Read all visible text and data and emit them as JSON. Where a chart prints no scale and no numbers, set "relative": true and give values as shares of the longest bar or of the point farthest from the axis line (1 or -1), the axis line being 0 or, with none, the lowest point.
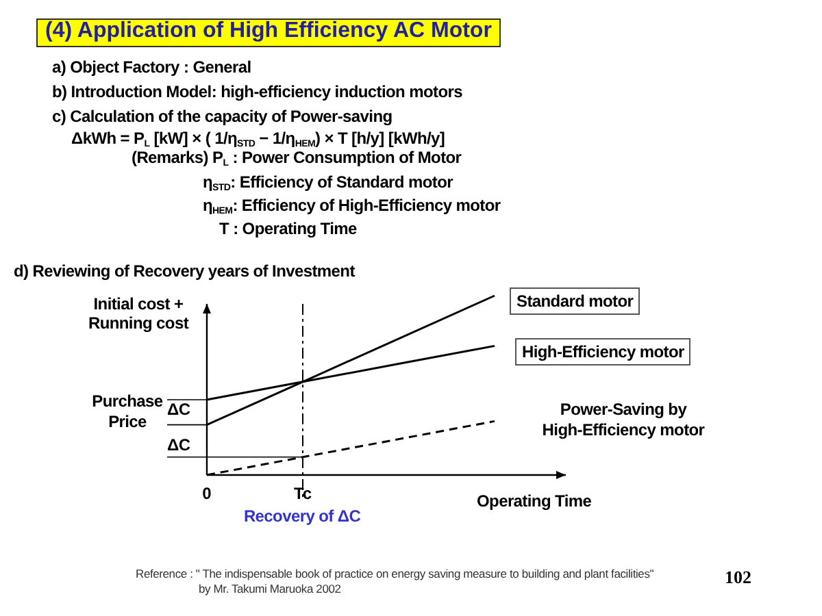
{
  "chart_data": {
    "type": "line",
    "title": "(4)  Application of High Efficiency AC Motor",
    "subtitle": "d) Reviewing of Recovery years of Investment",
    "xlabel": "Operating Time",
    "ylabel": "Initial cost + Running cost",
    "relative": true,
    "categories": [
      "0",
      "Tc",
      null,
      null
    ],
    "series": [
      {
        "name": "Standard motor",
        "color": "#000000",
        "line_style": "solid",
        "values": [
          0.28,
          0.52,
          0.76,
          1
        ]
      },
      {
        "name": "High-Efficiency motor",
        "color": "#000000",
        "line_style": "solid",
        "values": [
          0.42,
          0.52,
          0.62,
          0.72
        ]
      },
      {
        "name": "Power-Saving by High-Efficiency motor",
        "color": "#000000",
        "line_style": "dashed",
        "values": [
          0,
          0.1,
          0.2,
          0.3
        ]
      }
    ],
    "annotations": [
      "a) Object Factory : General",
      "b) Introduction Model: high-efficiency induction motors",
      "c) Calculation of the capacity of Power-saving",
      "ΔkWh = P$_{L}$ [kW] × ( 1/η$_{STD}$ − 1/η$_{HEM}$) × T [h/y]  [kWh/y]",
      "(Remarks) P$_{L}$  : Power Consumption of Motor",
      "η$_{STD}$: Efficiency of Standard motor",
      "η$_{HEM}$: Efficiency of High-Efficiency motor",
      "T   : Operating Time",
      "Reference : \" The  indispensable book of practice on energy saving measure to  building and plant facilities\"",
      "by Mr. Takumi Maruoka  2002",
      "102",
      "Purchase Price",
      "ΔC",
      "ΔC"
    ],
    "ref_lines": [
      {
        "axis": "x",
        "value": "Tc",
        "label": "Recovery of ΔC"
      }
    ]
  }
}
